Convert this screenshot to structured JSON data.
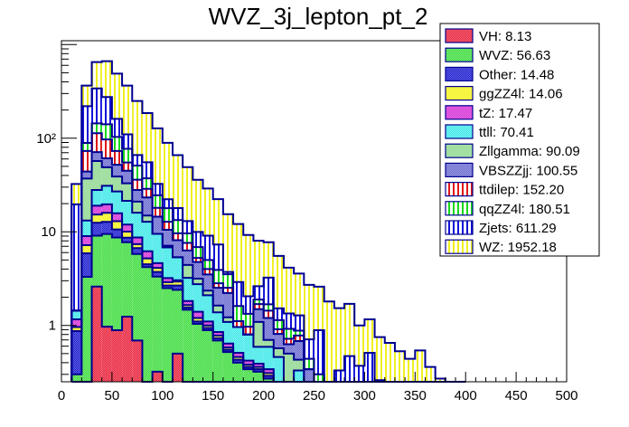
{
  "chart_data": {
    "type": "bar",
    "stacked": true,
    "histogram": true,
    "title": "WVZ_3j_lepton_pt_2",
    "xlabel": "",
    "ylabel": "",
    "xlim": [
      0,
      500
    ],
    "ylim": [
      0.25,
      1100
    ],
    "yscale": "log",
    "bin_width": 10,
    "bin_edges_start": 10,
    "x_ticks": [
      "0",
      "50",
      "100",
      "150",
      "200",
      "250",
      "300",
      "350",
      "400",
      "450",
      "500"
    ],
    "x_tick_values": [
      0,
      50,
      100,
      150,
      200,
      250,
      300,
      350,
      400,
      450,
      500
    ],
    "y_ticks": [
      {
        "value": 1,
        "label": "1"
      },
      {
        "value": 10,
        "label": "10"
      },
      {
        "value": 100,
        "label": "10²"
      }
    ],
    "legend_position": "top-right",
    "grid": false,
    "series": [
      {
        "name": "VH",
        "legend": "VH: 8.13",
        "color": "#e8203a",
        "hatch": "checker",
        "values": [
          0,
          0,
          2.6,
          0.97,
          0.89,
          1.24,
          0.69,
          0,
          0.32,
          0,
          0.5,
          0,
          0,
          0,
          0,
          0,
          0,
          0,
          0,
          0,
          0,
          0,
          0,
          0,
          0,
          0,
          0,
          0,
          0,
          0,
          0,
          0,
          0,
          0,
          0,
          0,
          0,
          0,
          0
        ]
      },
      {
        "name": "WVZ",
        "legend": "WVZ: 56.63",
        "color": "#3ddc3d",
        "hatch": "checker",
        "values": [
          0.3,
          3.3,
          6.5,
          8.5,
          7.8,
          6.5,
          5.1,
          4.2,
          3.0,
          2.5,
          1.9,
          1.47,
          1.04,
          0.89,
          0.69,
          0.52,
          0.4,
          0.34,
          0.32,
          0.27,
          0,
          0,
          0,
          0,
          0,
          0,
          0,
          0,
          0,
          0,
          0,
          0,
          0,
          0,
          0,
          0,
          0,
          0,
          0
        ]
      },
      {
        "name": "Other",
        "legend": "Other: 14.48",
        "color": "#1a1ad0",
        "hatch": "checker",
        "values": [
          0.57,
          2.6,
          3.4,
          3.3,
          1.9,
          0.9,
          0.9,
          0.3,
          0.4,
          0.17,
          0.27,
          0.08,
          0.06,
          0.05,
          0.04,
          0.03,
          0.03,
          0.02,
          0.02,
          0.02,
          0,
          0,
          0,
          0,
          0,
          0,
          0,
          0,
          0,
          0,
          0,
          0,
          0,
          0,
          0,
          0,
          0,
          0,
          0
        ]
      },
      {
        "name": "ggZZ4l",
        "legend": "ggZZ4l: 14.06",
        "color": "#f5f542",
        "hatch": "solid",
        "values": [
          0.09,
          1.3,
          2.8,
          3.2,
          2.4,
          1.4,
          0.7,
          0.7,
          0.4,
          0.23,
          0.27,
          0.1,
          0.1,
          0.06,
          0.05,
          0.03,
          0.03,
          0.02,
          0.02,
          0.02,
          0,
          0,
          0,
          0,
          0,
          0,
          0,
          0,
          0,
          0,
          0,
          0,
          0,
          0,
          0,
          0,
          0,
          0,
          0
        ]
      },
      {
        "name": "tZ",
        "legend": "tZ: 17.47",
        "color": "#d630d6",
        "hatch": "checker",
        "values": [
          0.2,
          1.8,
          3.7,
          3.7,
          2.8,
          1.9,
          1.3,
          1.0,
          0.5,
          0.3,
          0.1,
          0.17,
          0.2,
          0.1,
          0.07,
          0.06,
          0.05,
          0.04,
          0.03,
          0.03,
          0,
          0,
          0,
          0,
          0,
          0,
          0,
          0,
          0,
          0,
          0,
          0,
          0,
          0,
          0,
          0,
          0,
          0,
          0
        ]
      },
      {
        "name": "ttll",
        "legend": "ttll: 70.41",
        "color": "#3ee8e8",
        "hatch": "checker",
        "values": [
          0.28,
          4.2,
          9.0,
          11.3,
          11.2,
          9.5,
          7.3,
          6.6,
          4.9,
          3.6,
          2.3,
          1.4,
          1.36,
          1.0,
          0.53,
          0.45,
          0.45,
          0.38,
          0.2,
          0.25,
          0.46,
          0.2,
          0.33,
          0,
          0,
          0,
          0,
          0,
          0,
          0,
          0,
          0,
          0,
          0,
          0,
          0,
          0,
          0,
          0
        ]
      },
      {
        "name": "Zllgamma",
        "legend": "Zllgamma: 90.09",
        "color": "#8fd88f",
        "hatch": "checker",
        "values": [
          0,
          23.8,
          29,
          18,
          12,
          11.5,
          5,
          2.1,
          0,
          0.3,
          0,
          1.2,
          0.4,
          0.25,
          0.25,
          0.13,
          0,
          0,
          0.5,
          0.11,
          0.11,
          0.3,
          0.1,
          0,
          0,
          0,
          0,
          0,
          0,
          0,
          0,
          0,
          0,
          0,
          0,
          0,
          0,
          0,
          0
        ]
      },
      {
        "name": "VBSZZjj",
        "legend": "VBSZZjj: 100.55",
        "color": "#6a6ad0",
        "hatch": "checker",
        "values": [
          0,
          7,
          14,
          12,
          13,
          12,
          7,
          8.4,
          5,
          3.4,
          2.8,
          1.9,
          1.6,
          1.15,
          0.89,
          1.0,
          0.0,
          0.0,
          0.4,
          0.5,
          0.24,
          0.13,
          0.25,
          0.34,
          0.2,
          0,
          0,
          0,
          0,
          0,
          0,
          0,
          0,
          0,
          0,
          0,
          0,
          0,
          0,
          0
        ]
      },
      {
        "name": "ttdilep",
        "legend": "ttdilep: 152.20",
        "color": "#e01818",
        "hatch": "vstripe",
        "values": [
          0,
          29,
          42,
          36,
          21,
          10,
          8,
          5.5,
          3.5,
          2.3,
          1.5,
          1.3,
          0.5,
          0.5,
          0.3,
          0.3,
          0.15,
          0.17,
          0.2,
          0.24,
          0.1,
          0.09,
          0.1,
          0,
          0,
          0,
          0,
          0,
          0,
          0,
          0,
          0,
          0,
          0,
          0,
          0,
          0,
          0,
          0
        ]
      },
      {
        "name": "qqZZ4l",
        "legend": "qqZZ4l: 180.51",
        "color": "#18d818",
        "hatch": "vstripe",
        "values": [
          0,
          16,
          31,
          44,
          30,
          22,
          15,
          8.5,
          6.5,
          5.1,
          3.7,
          2.0,
          1.6,
          1.0,
          1.1,
          1.0,
          0.5,
          0.36,
          0.2,
          0.24,
          0.23,
          0.2,
          0.1,
          0.1,
          0.1,
          0.06,
          0.06,
          0,
          0,
          0,
          0,
          0,
          0,
          0,
          0,
          0,
          0,
          0,
          0
        ]
      },
      {
        "name": "Zjets",
        "legend": "Zjets: 611.29",
        "color": "#1010d8",
        "hatch": "vstripe",
        "values": [
          18.2,
          131,
          196,
          134,
          58,
          33,
          15,
          18,
          8,
          4.4,
          4.6,
          3.4,
          3.1,
          4.1,
          3.4,
          0.2,
          1.3,
          0.72,
          0.73,
          1.56,
          0.38,
          0.42,
          0.4,
          0.27,
          0.59,
          0.14,
          0.27,
          0.47,
          0.37,
          0.51,
          0.26,
          0,
          0,
          0,
          0,
          0,
          0,
          0,
          0
        ]
      },
      {
        "name": "WZ",
        "legend": "WZ: 1952.18",
        "color": "#f0f020",
        "hatch": "vstripe",
        "values": [
          12.8,
          145,
          310,
          390,
          329,
          255,
          184,
          130,
          95,
          67,
          48,
          36,
          26,
          19.9,
          15,
          11.7,
          9.2,
          7.2,
          5.4,
          4.5,
          4.0,
          2.8,
          2.3,
          2.0,
          1.7,
          1.6,
          1.2,
          1.23,
          0.63,
          0.65,
          0.49,
          0.65,
          0.53,
          0.44,
          0.54,
          0.36,
          0.27,
          0,
          0.25
        ]
      }
    ]
  }
}
